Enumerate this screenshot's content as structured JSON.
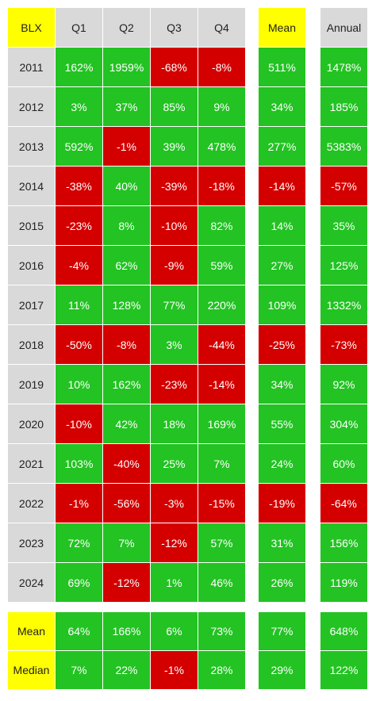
{
  "chart_data": {
    "type": "table",
    "ticker": "BLX",
    "columns": [
      "Q1",
      "Q2",
      "Q3",
      "Q4"
    ],
    "mean_header": "Mean",
    "annual_header": "Annual",
    "rows": [
      {
        "year": "2011",
        "q": [
          "162%",
          "1959%",
          "-68%",
          "-8%"
        ],
        "mean": "511%",
        "annual": "1478%"
      },
      {
        "year": "2012",
        "q": [
          "3%",
          "37%",
          "85%",
          "9%"
        ],
        "mean": "34%",
        "annual": "185%"
      },
      {
        "year": "2013",
        "q": [
          "592%",
          "-1%",
          "39%",
          "478%"
        ],
        "mean": "277%",
        "annual": "5383%"
      },
      {
        "year": "2014",
        "q": [
          "-38%",
          "40%",
          "-39%",
          "-18%"
        ],
        "mean": "-14%",
        "annual": "-57%"
      },
      {
        "year": "2015",
        "q": [
          "-23%",
          "8%",
          "-10%",
          "82%"
        ],
        "mean": "14%",
        "annual": "35%"
      },
      {
        "year": "2016",
        "q": [
          "-4%",
          "62%",
          "-9%",
          "59%"
        ],
        "mean": "27%",
        "annual": "125%"
      },
      {
        "year": "2017",
        "q": [
          "11%",
          "128%",
          "77%",
          "220%"
        ],
        "mean": "109%",
        "annual": "1332%"
      },
      {
        "year": "2018",
        "q": [
          "-50%",
          "-8%",
          "3%",
          "-44%"
        ],
        "mean": "-25%",
        "annual": "-73%"
      },
      {
        "year": "2019",
        "q": [
          "10%",
          "162%",
          "-23%",
          "-14%"
        ],
        "mean": "34%",
        "annual": "92%"
      },
      {
        "year": "2020",
        "q": [
          "-10%",
          "42%",
          "18%",
          "169%"
        ],
        "mean": "55%",
        "annual": "304%"
      },
      {
        "year": "2021",
        "q": [
          "103%",
          "-40%",
          "25%",
          "7%"
        ],
        "mean": "24%",
        "annual": "60%"
      },
      {
        "year": "2022",
        "q": [
          "-1%",
          "-56%",
          "-3%",
          "-15%"
        ],
        "mean": "-19%",
        "annual": "-64%"
      },
      {
        "year": "2023",
        "q": [
          "72%",
          "7%",
          "-12%",
          "57%"
        ],
        "mean": "31%",
        "annual": "156%"
      },
      {
        "year": "2024",
        "q": [
          "69%",
          "-12%",
          "1%",
          "46%"
        ],
        "mean": "26%",
        "annual": "119%"
      }
    ],
    "stats": [
      {
        "label": "Mean",
        "q": [
          "64%",
          "166%",
          "6%",
          "73%"
        ],
        "mean": "77%",
        "annual": "648%"
      },
      {
        "label": "Median",
        "q": [
          "7%",
          "22%",
          "-1%",
          "28%"
        ],
        "mean": "29%",
        "annual": "122%"
      }
    ],
    "colors": {
      "positive": "#22c322",
      "negative": "#d40000",
      "label": "#ffff00",
      "header": "#d9d9d9"
    }
  }
}
